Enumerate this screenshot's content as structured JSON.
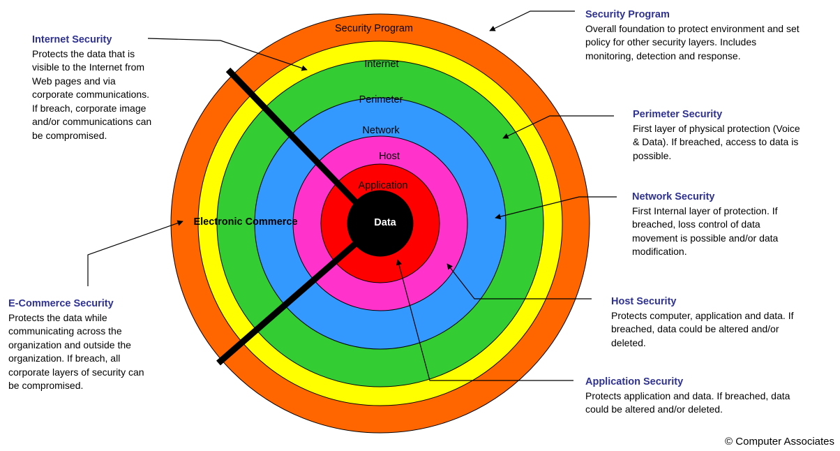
{
  "rings": [
    {
      "label": "Security Program",
      "color": "#ff6600"
    },
    {
      "label": "Internet",
      "color": "#ffff00"
    },
    {
      "label": "Perimeter",
      "color": "#33cc33"
    },
    {
      "label": "Network",
      "color": "#3399ff"
    },
    {
      "label": "Host",
      "color": "#ff33cc"
    },
    {
      "label": "Application",
      "color": "#ff0000"
    },
    {
      "label": "Data",
      "color": "#000000"
    }
  ],
  "wedge_label": "Electronic Commerce",
  "annotations": {
    "security_program": {
      "title": "Security Program",
      "text": "Overall foundation to protect environment and set\npolicy for other security layers.  Includes\nmonitoring, detection and response."
    },
    "internet": {
      "title": "Internet Security",
      "text": "Protects the data that is\nvisible to the Internet from\nWeb pages and  via\ncorporate communications.\nIf breach, corporate image\nand/or communications can\nbe compromised."
    },
    "perimeter": {
      "title": "Perimeter Security",
      "text": "First layer of physical protection (Voice\n& Data).  If breached, access to data is\npossible."
    },
    "network": {
      "title": "Network Security",
      "text": "First Internal layer of protection.  If\nbreached, loss control of data\nmovement is possible and/or data\nmodification."
    },
    "host": {
      "title": "Host Security",
      "text": "Protects computer, application and data. If\nbreached, data could be altered and/or\ndeleted."
    },
    "application": {
      "title": "Application Security",
      "text": "Protects application and data. If breached, data\ncould be altered and/or deleted."
    },
    "ecommerce": {
      "title": "E-Commerce Security",
      "text": "Protects the data while\ncommunicating across the\norganization and outside the\norganization.  If breach, all\ncorporate layers of security can\nbe compromised."
    }
  },
  "copyright": "© Computer Associates"
}
